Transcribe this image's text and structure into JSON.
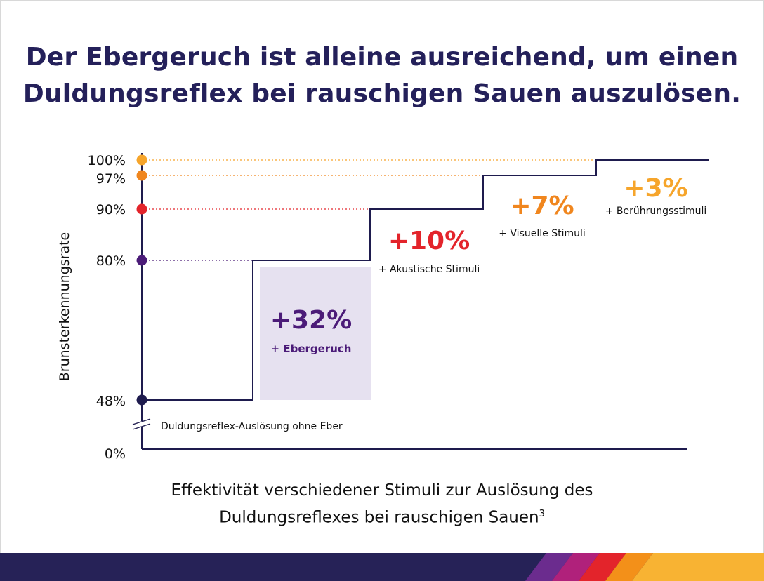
{
  "headline": {
    "line1": "Der Ebergeruch ist alleine ausreichend, um einen",
    "line2": "Duldungsreflex bei rauschigen Sauen auszulösen."
  },
  "caption": {
    "line1": "Effektivität verschiedener Stimuli zur Auslösung des",
    "line2": "Duldungsreflexes bei rauschigen Sauen",
    "footnote": "3"
  },
  "chart_data": {
    "type": "step",
    "title": "Der Ebergeruch ist alleine ausreichend, um einen Duldungsreflex bei rauschigen Sauen auszulösen.",
    "ylabel": "Brunsterkennungsrate",
    "xlabel": "Effektivität verschiedener Stimuli zur Auslösung des Duldungsreflexes bei rauschigen Sauen",
    "axis_break": true,
    "y_ticks": [
      "100%",
      "97%",
      "90%",
      "80%",
      "48%",
      "0%"
    ],
    "baseline": {
      "value": 48,
      "label": "Duldungsreflex-Auslösung ohne Eber",
      "color": "#1e1b4e"
    },
    "steps": [
      {
        "increment": "+32%",
        "label": "+ Ebergeruch",
        "level": 80,
        "color": "#4b1b78",
        "highlight": true
      },
      {
        "increment": "+10%",
        "label": "+ Akustische Stimuli",
        "level": 90,
        "color": "#e3242b"
      },
      {
        "increment": "+7%",
        "label": "+ Visuelle Stimuli",
        "level": 97,
        "color": "#f0861e"
      },
      {
        "increment": "+3%",
        "label": "+ Berührungsstimuli",
        "level": 100,
        "color": "#f6a52b"
      }
    ],
    "highlight_color": "#e6e1f0",
    "line_color": "#1e1b4e"
  },
  "footer": {
    "stripe_colors": [
      "#6b2c8e",
      "#b0217b",
      "#e3242b",
      "#f39019",
      "#f8b333"
    ]
  }
}
